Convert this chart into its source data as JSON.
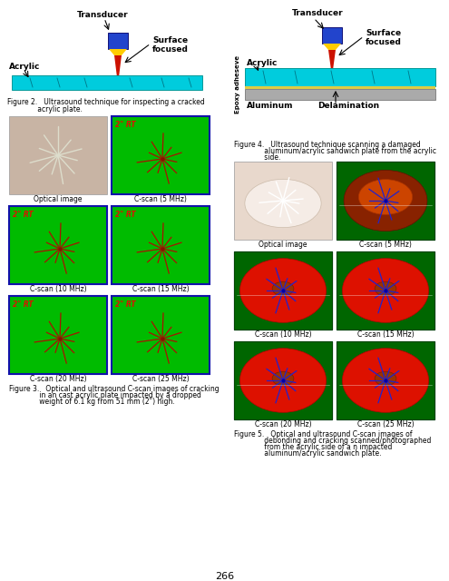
{
  "page_bg": "#ffffff",
  "left_diagram": {
    "fig2_caption_line1": "Figure 2.   Ultrasound technique for inspecting a cracked",
    "fig2_caption_line2": "              acrylic plate."
  },
  "right_diagram": {
    "fig4_caption_line1": "Figure 4.   Ultrasound technique scanning a damaged",
    "fig4_caption_line2": "              aluminum/acrylic sandwich plate from the acrylic",
    "fig4_caption_line3": "              side."
  },
  "fig3_caption_line1": "Figure 3.   Optical and ultrasound C-scan images of cracking",
  "fig3_caption_line2": "              in an cast acrylic plate impacted by a dropped",
  "fig3_caption_line3": "              weight of 6.1 kg from 51 mm (2\") high.",
  "fig5_caption_line1": "Figure 5.   Optical and ultrasound C-scan images of",
  "fig5_caption_line2": "              debonding and cracking scanned/photographed",
  "fig5_caption_line3": "              from the acrylic side of a n impacted",
  "fig5_caption_line4": "              aluminum/acrylic sandwich plate.",
  "page_number": "266"
}
